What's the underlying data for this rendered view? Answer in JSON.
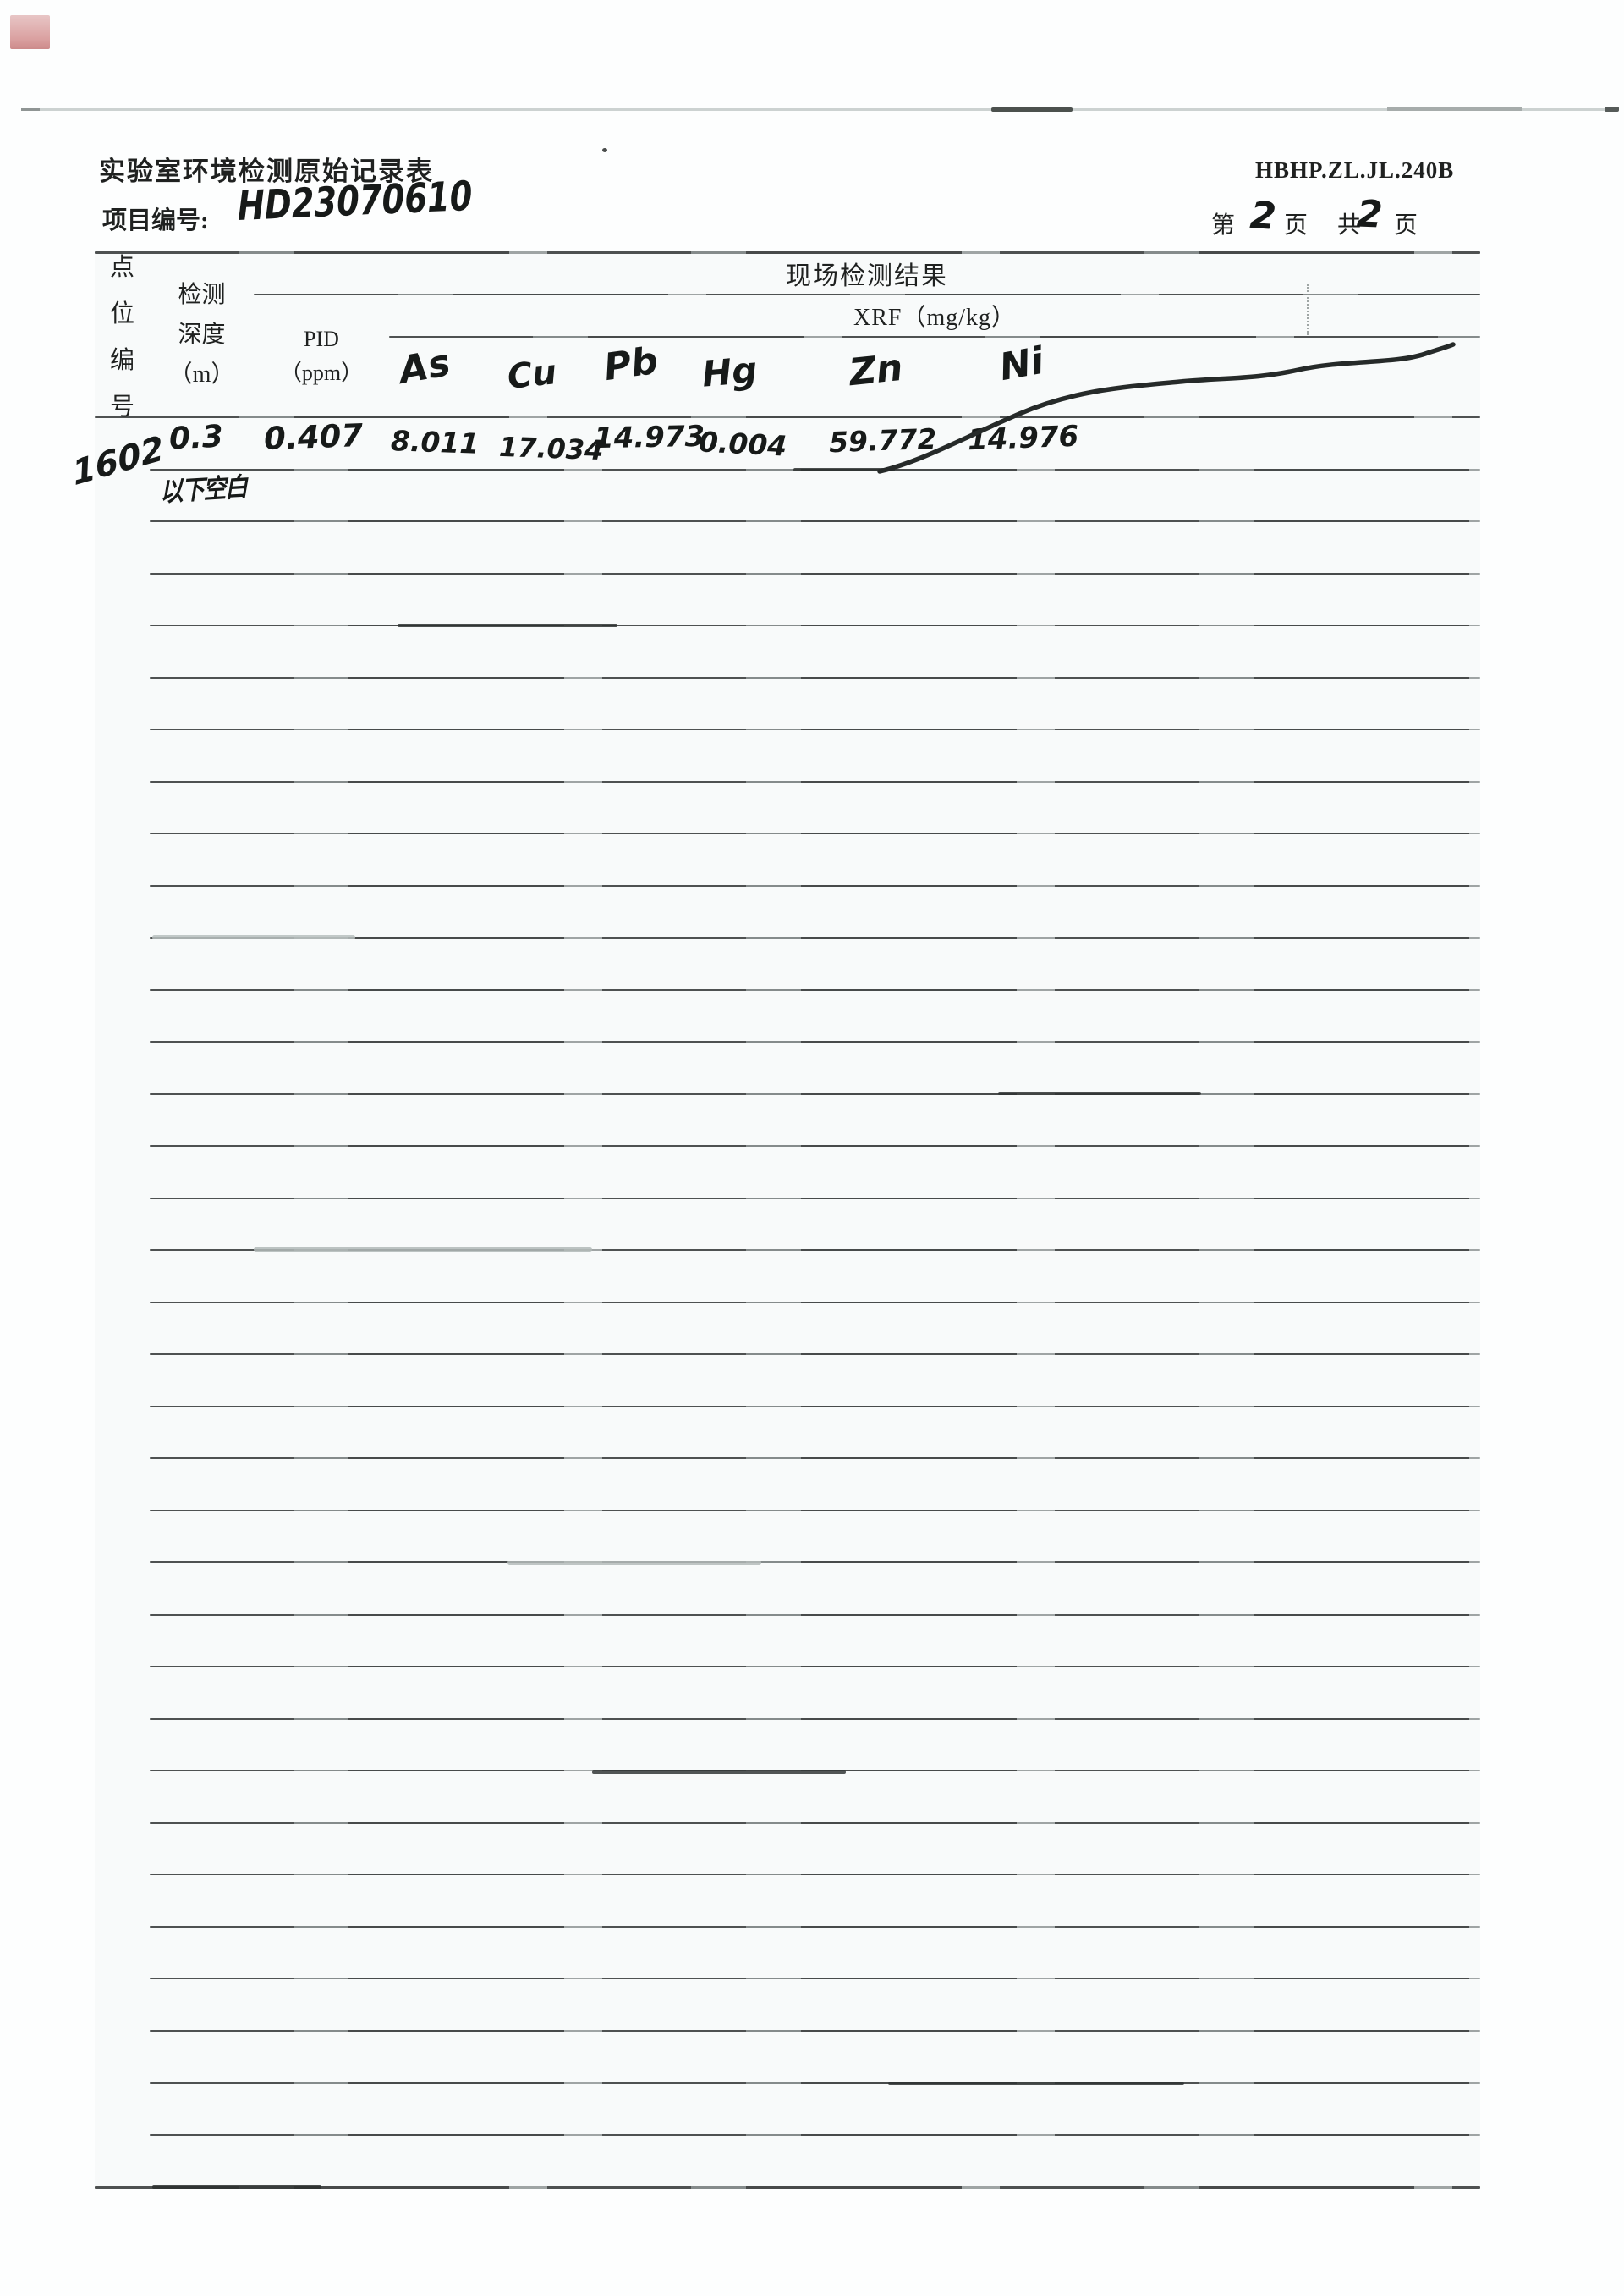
{
  "page": {
    "title": "实验室环境检测原始记录表",
    "project_label": "项目编号:",
    "project_number": "HD23070610",
    "doc_code": "HBHP.ZL.JL.240B",
    "page_label_1": "第",
    "page_current": "2",
    "page_label_2": "页 共",
    "page_total": "2",
    "page_label_3": "页"
  },
  "table": {
    "point_col_chars": [
      "点",
      "位",
      "编",
      "号"
    ],
    "depth_header": "检测\n深度\n（m）",
    "results_header": "现场检测结果",
    "xrf_header": "XRF（mg/kg）",
    "pid_header": "PID\n（ppm）",
    "element_headers": [
      "As",
      "Cu",
      "Pb",
      "Hg",
      "Zn",
      "Ni"
    ],
    "entry": {
      "point_id": "1602",
      "depth_m": "0.3",
      "pid_ppm": "0.407",
      "as_mgkg": "8.011",
      "cu_mgkg": "17.034",
      "pb_mgkg": "14.973",
      "hg_mgkg": "0.004",
      "zn_mgkg": "59.772",
      "ni_mgkg": "14.976",
      "note": "以下空白"
    }
  }
}
